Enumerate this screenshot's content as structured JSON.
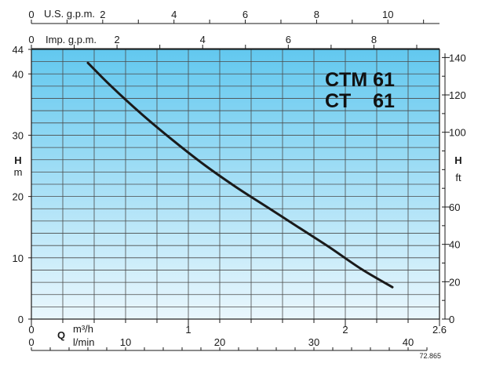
{
  "chart_data": {
    "type": "line",
    "title_lines": [
      "CTM 61",
      "CT    61"
    ],
    "title_model_1": "CTM",
    "title_model_2": "CT",
    "title_number": "61",
    "series": [
      {
        "x": [
          0.36,
          0.5,
          0.7,
          0.9,
          1.1,
          1.3,
          1.5,
          1.7,
          1.9,
          2.1,
          2.3
        ],
        "y": [
          41.8,
          38.2,
          33.5,
          29.2,
          25.2,
          21.6,
          18.3,
          15.0,
          11.7,
          8.2,
          5.2
        ]
      }
    ],
    "x_primary": {
      "unit": "m³/h",
      "min": 0,
      "max": 2.6,
      "ticks": [
        0,
        1,
        2,
        2.6
      ],
      "tick_labels": [
        "0",
        "1",
        "2",
        "2.6"
      ]
    },
    "x_lmin": {
      "unit": "l/min",
      "ticks": [
        0,
        10,
        20,
        30,
        40
      ],
      "tick_labels": [
        "0",
        "10",
        "20",
        "30",
        "40"
      ]
    },
    "x_us_gpm": {
      "label": "U.S. g.p.m.",
      "ticks": [
        0,
        2,
        4,
        6,
        8,
        10
      ],
      "tick_labels": [
        "0",
        "2",
        "4",
        "6",
        "8",
        "10"
      ]
    },
    "x_imp_gpm": {
      "label": "Imp. g.p.m.",
      "ticks": [
        0,
        2,
        4,
        6,
        8
      ],
      "tick_labels": [
        "0",
        "2",
        "4",
        "6",
        "8"
      ]
    },
    "y_left": {
      "label": "H",
      "unit": "m",
      "min": 0,
      "max": 44,
      "ticks": [
        0,
        10,
        20,
        30,
        40,
        44
      ],
      "tick_labels": [
        "0",
        "10",
        "20",
        "30",
        "40",
        "44"
      ]
    },
    "y_right": {
      "label": "H",
      "unit": "ft",
      "ticks": [
        0,
        20,
        40,
        60,
        100,
        120,
        140
      ],
      "tick_labels": [
        "0",
        "20",
        "40",
        "60",
        "100",
        "120",
        "140"
      ]
    },
    "q_label": "Q",
    "grid": true,
    "background_gradient": [
      "#62c8ef",
      "#eaf7fd"
    ],
    "curve_color": "#1a1a1a",
    "ref_code": "72.865"
  }
}
